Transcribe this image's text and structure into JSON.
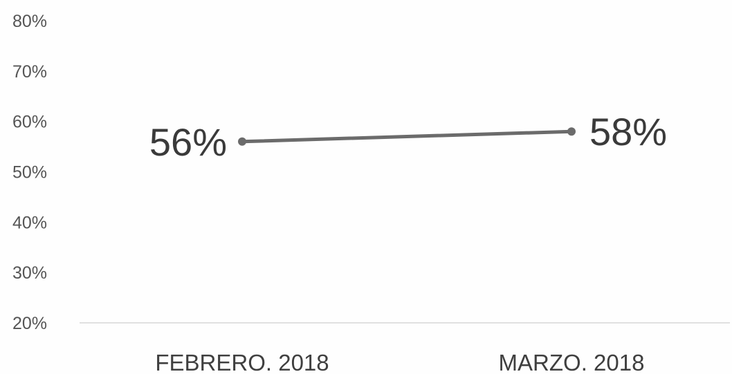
{
  "chart_data": {
    "type": "line",
    "categories": [
      "FEBRERO. 2018",
      "MARZO. 2018"
    ],
    "series": [
      {
        "values": [
          56,
          58
        ],
        "labels": [
          "56%",
          "58%"
        ]
      }
    ],
    "y_ticks": [
      "20%",
      "30%",
      "40%",
      "50%",
      "60%",
      "70%",
      "80%"
    ],
    "y_tick_values": [
      20,
      30,
      40,
      50,
      60,
      70,
      80
    ],
    "ylim": [
      20,
      80
    ],
    "grid": false,
    "legend": "none",
    "colors": {
      "line": "#6b6b6b",
      "marker": "#6b6b6b",
      "axis": "#d6d6d6"
    }
  }
}
